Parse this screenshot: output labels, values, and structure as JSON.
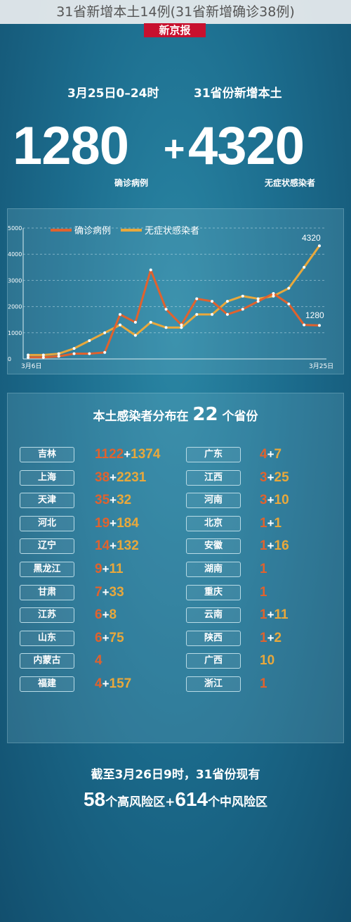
{
  "banner": "31省新增本土14例(31省新增确诊38例)",
  "logo": "新京报",
  "headline": {
    "date": "3月25日0–24时",
    "subject": "31省份新增本土"
  },
  "totals": {
    "confirmed": "1280",
    "plus": "+",
    "asymptomatic": "4320",
    "confirmed_label": "确诊病例",
    "asymptomatic_label": "无症状感染者"
  },
  "colors": {
    "confirmed": "#e0622e",
    "asymptomatic": "#e8a83c"
  },
  "chart_data": {
    "type": "line",
    "x_start_label": "3月6日",
    "x_end_label": "3月25日",
    "x": [
      "3月6日",
      "3月7日",
      "3月8日",
      "3月9日",
      "3月10日",
      "3月11日",
      "3月12日",
      "3月13日",
      "3月14日",
      "3月15日",
      "3月16日",
      "3月17日",
      "3月18日",
      "3月19日",
      "3月20日",
      "3月21日",
      "3月22日",
      "3月23日",
      "3月24日",
      "3月25日"
    ],
    "ylim": [
      0,
      5000
    ],
    "yticks": [
      "0",
      "1000",
      "2000",
      "3000",
      "4000",
      "5000"
    ],
    "series": [
      {
        "name": "确诊病例",
        "values": [
          60,
          60,
          100,
          200,
          200,
          250,
          1700,
          1400,
          3400,
          1900,
          1300,
          2300,
          2200,
          1700,
          1900,
          2200,
          2500,
          2100,
          1300,
          1280
        ]
      },
      {
        "name": "无症状感染者",
        "values": [
          150,
          150,
          200,
          400,
          700,
          1000,
          1300,
          900,
          1400,
          1200,
          1200,
          1700,
          1700,
          2200,
          2400,
          2300,
          2400,
          2700,
          3500,
          4320
        ]
      }
    ],
    "end_labels": {
      "confirmed": "1280",
      "asymptomatic": "4320"
    }
  },
  "distribution": {
    "title_pre": "本土感染者分布在",
    "count": "22",
    "title_post": "个省份",
    "left": [
      {
        "name": "吉林",
        "confirmed": "1122",
        "asymptomatic": "1374"
      },
      {
        "name": "上海",
        "confirmed": "38",
        "asymptomatic": "2231"
      },
      {
        "name": "天津",
        "confirmed": "35",
        "asymptomatic": "32"
      },
      {
        "name": "河北",
        "confirmed": "19",
        "asymptomatic": "184"
      },
      {
        "name": "辽宁",
        "confirmed": "14",
        "asymptomatic": "132"
      },
      {
        "name": "黑龙江",
        "confirmed": "9",
        "asymptomatic": "11"
      },
      {
        "name": "甘肃",
        "confirmed": "7",
        "asymptomatic": "33"
      },
      {
        "name": "江苏",
        "confirmed": "6",
        "asymptomatic": "8"
      },
      {
        "name": "山东",
        "confirmed": "6",
        "asymptomatic": "75"
      },
      {
        "name": "内蒙古",
        "confirmed": "4",
        "asymptomatic": ""
      },
      {
        "name": "福建",
        "confirmed": "4",
        "asymptomatic": "157"
      }
    ],
    "right": [
      {
        "name": "广东",
        "confirmed": "4",
        "asymptomatic": "7"
      },
      {
        "name": "江西",
        "confirmed": "3",
        "asymptomatic": "25"
      },
      {
        "name": "河南",
        "confirmed": "3",
        "asymptomatic": "10"
      },
      {
        "name": "北京",
        "confirmed": "1",
        "asymptomatic": "1"
      },
      {
        "name": "安徽",
        "confirmed": "1",
        "asymptomatic": "16"
      },
      {
        "name": "湖南",
        "confirmed": "1",
        "asymptomatic": ""
      },
      {
        "name": "重庆",
        "confirmed": "1",
        "asymptomatic": ""
      },
      {
        "name": "云南",
        "confirmed": "1",
        "asymptomatic": "11"
      },
      {
        "name": "陕西",
        "confirmed": "1",
        "asymptomatic": "2"
      },
      {
        "name": "广西",
        "confirmed": "",
        "asymptomatic": "10"
      },
      {
        "name": "浙江",
        "confirmed": "1",
        "asymptomatic": ""
      }
    ]
  },
  "footer": {
    "line1": "截至3月26日9时，31省份现有",
    "high_count": "58",
    "high_text": "个高风险区+",
    "mid_count": "614",
    "mid_text": "个中风险区"
  }
}
